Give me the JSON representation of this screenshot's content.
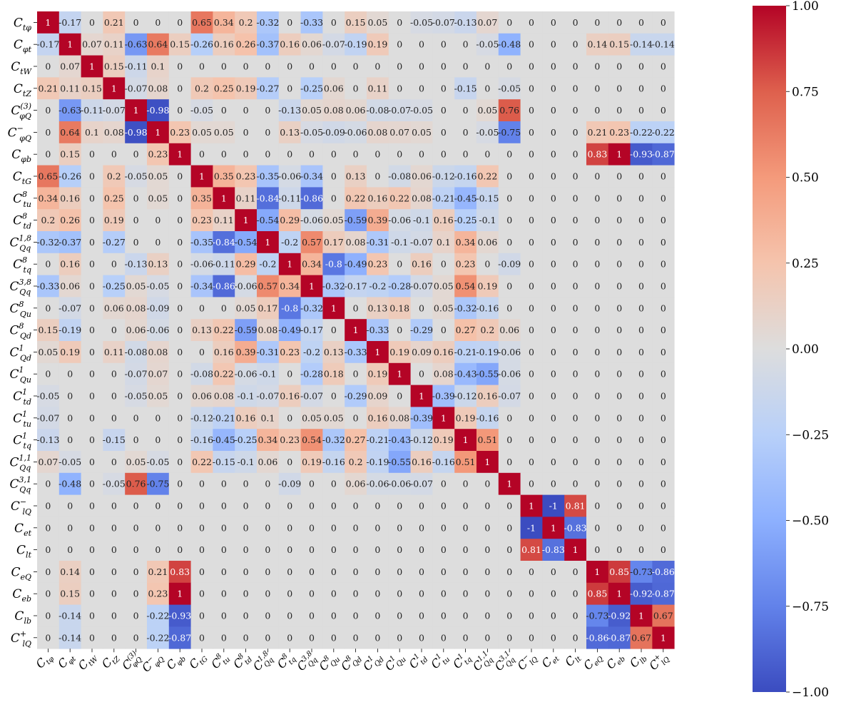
{
  "chart_data": {
    "type": "heatmap",
    "title": "",
    "xlabel": "",
    "ylabel": "",
    "labels": [
      {
        "base": "C",
        "sub": "tφ",
        "sup": ""
      },
      {
        "base": "C",
        "sub": "φt",
        "sup": ""
      },
      {
        "base": "C",
        "sub": "tW",
        "sup": ""
      },
      {
        "base": "C",
        "sub": "tZ",
        "sup": ""
      },
      {
        "base": "C",
        "sub": "φQ",
        "sup": "(3)"
      },
      {
        "base": "C",
        "sub": "φQ",
        "sup": "−"
      },
      {
        "base": "C",
        "sub": "φb",
        "sup": ""
      },
      {
        "base": "C",
        "sub": "tG",
        "sup": ""
      },
      {
        "base": "C",
        "sub": "tu",
        "sup": "8"
      },
      {
        "base": "C",
        "sub": "td",
        "sup": "8"
      },
      {
        "base": "C",
        "sub": "Qq",
        "sup": "1,8"
      },
      {
        "base": "C",
        "sub": "tq",
        "sup": "8"
      },
      {
        "base": "C",
        "sub": "Qq",
        "sup": "3,8"
      },
      {
        "base": "C",
        "sub": "Qu",
        "sup": "8"
      },
      {
        "base": "C",
        "sub": "Qd",
        "sup": "8"
      },
      {
        "base": "C",
        "sub": "Qd",
        "sup": "1"
      },
      {
        "base": "C",
        "sub": "Qu",
        "sup": "1"
      },
      {
        "base": "C",
        "sub": "td",
        "sup": "1"
      },
      {
        "base": "C",
        "sub": "tu",
        "sup": "1"
      },
      {
        "base": "C",
        "sub": "tq",
        "sup": "1"
      },
      {
        "base": "C",
        "sub": "Qq",
        "sup": "1,1"
      },
      {
        "base": "C",
        "sub": "Qq",
        "sup": "3,1"
      },
      {
        "base": "C",
        "sub": "lQ",
        "sup": "−"
      },
      {
        "base": "C",
        "sub": "et",
        "sup": ""
      },
      {
        "base": "C",
        "sub": "lt",
        "sup": ""
      },
      {
        "base": "C",
        "sub": "eQ",
        "sup": ""
      },
      {
        "base": "C",
        "sub": "eb",
        "sup": ""
      },
      {
        "base": "C",
        "sub": "lb",
        "sup": ""
      },
      {
        "base": "C",
        "sub": "lQ",
        "sup": "+"
      }
    ],
    "matrix": [
      [
        1,
        -0.17,
        0,
        0.21,
        0,
        0,
        0,
        0.65,
        0.34,
        0.2,
        -0.32,
        0,
        -0.33,
        0,
        0.15,
        0.05,
        0,
        -0.05,
        -0.07,
        -0.13,
        0.07,
        0,
        0,
        0,
        0,
        0,
        0,
        0,
        0
      ],
      [
        -0.17,
        1,
        0.07,
        0.11,
        -0.63,
        0.64,
        0.15,
        -0.26,
        0.16,
        0.26,
        -0.37,
        0.16,
        0.06,
        -0.07,
        -0.19,
        0.19,
        0,
        0,
        0,
        0,
        -0.05,
        -0.48,
        0,
        0,
        0,
        0.14,
        0.15,
        -0.14,
        -0.14
      ],
      [
        0,
        0.07,
        1,
        0.15,
        -0.11,
        0.1,
        0,
        0,
        0,
        0,
        0,
        0,
        0,
        0,
        0,
        0,
        0,
        0,
        0,
        0,
        0,
        0,
        0,
        0,
        0,
        0,
        0,
        0,
        0
      ],
      [
        0.21,
        0.11,
        0.15,
        1,
        -0.07,
        0.08,
        0,
        0.2,
        0.25,
        0.19,
        -0.27,
        0,
        -0.25,
        0.06,
        0,
        0.11,
        0,
        0,
        0,
        -0.15,
        0,
        -0.05,
        0,
        0,
        0,
        0,
        0,
        0,
        0
      ],
      [
        0,
        -0.63,
        -0.11,
        -0.07,
        1,
        -0.98,
        0,
        -0.05,
        0,
        0,
        0,
        -0.13,
        0.05,
        0.08,
        0.06,
        -0.08,
        -0.07,
        -0.05,
        0,
        0,
        0.05,
        0.76,
        0,
        0,
        0,
        0,
        0,
        0,
        0
      ],
      [
        0,
        0.64,
        0.1,
        0.08,
        -0.98,
        1,
        0.23,
        0.05,
        0.05,
        0,
        0,
        0.13,
        -0.05,
        -0.09,
        -0.06,
        0.08,
        0.07,
        0.05,
        0,
        0,
        -0.05,
        -0.75,
        0,
        0,
        0,
        0.21,
        0.23,
        -0.22,
        -0.22
      ],
      [
        0,
        0.15,
        0,
        0,
        0,
        0.23,
        1,
        0,
        0,
        0,
        0,
        0,
        0,
        0,
        0,
        0,
        0,
        0,
        0,
        0,
        0,
        0,
        0,
        0,
        0,
        0.83,
        1,
        -0.93,
        -0.87
      ],
      [
        0.65,
        -0.26,
        0,
        0.2,
        -0.05,
        0.05,
        0,
        1,
        0.35,
        0.23,
        -0.35,
        -0.06,
        -0.34,
        0,
        0.13,
        0,
        -0.08,
        0.06,
        -0.12,
        -0.16,
        0.22,
        0,
        0,
        0,
        0,
        0,
        0,
        0,
        0
      ],
      [
        0.34,
        0.16,
        0,
        0.25,
        0,
        0.05,
        0,
        0.35,
        1,
        0.11,
        -0.84,
        -0.11,
        -0.86,
        0,
        0.22,
        0.16,
        0.22,
        0.08,
        -0.21,
        -0.45,
        -0.15,
        0,
        0,
        0,
        0,
        0,
        0,
        0,
        0
      ],
      [
        0.2,
        0.26,
        0,
        0.19,
        0,
        0,
        0,
        0.23,
        0.11,
        1,
        -0.54,
        0.29,
        -0.06,
        0.05,
        -0.59,
        0.39,
        -0.06,
        -0.1,
        0.16,
        -0.25,
        -0.1,
        0,
        0,
        0,
        0,
        0,
        0,
        0,
        0
      ],
      [
        -0.32,
        -0.37,
        0,
        -0.27,
        0,
        0,
        0,
        -0.35,
        -0.84,
        -0.54,
        1,
        -0.2,
        0.57,
        0.17,
        0.08,
        -0.31,
        -0.1,
        -0.07,
        0.1,
        0.34,
        0.06,
        0,
        0,
        0,
        0,
        0,
        0,
        0,
        0
      ],
      [
        0,
        0.16,
        0,
        0,
        -0.13,
        0.13,
        0,
        -0.06,
        -0.11,
        0.29,
        -0.2,
        1,
        0.34,
        -0.8,
        -0.49,
        0.23,
        0,
        0.16,
        0,
        0.23,
        0,
        -0.09,
        0,
        0,
        0,
        0,
        0,
        0,
        0
      ],
      [
        -0.33,
        0.06,
        0,
        -0.25,
        0.05,
        -0.05,
        0,
        -0.34,
        -0.86,
        -0.06,
        0.57,
        0.34,
        1,
        -0.32,
        -0.17,
        -0.2,
        -0.28,
        -0.07,
        0.05,
        0.54,
        0.19,
        0,
        0,
        0,
        0,
        0,
        0,
        0,
        0
      ],
      [
        0,
        -0.07,
        0,
        0.06,
        0.08,
        -0.09,
        0,
        0,
        0,
        0.05,
        0.17,
        -0.8,
        -0.32,
        1,
        0,
        0.13,
        0.18,
        0,
        0.05,
        -0.32,
        -0.16,
        0,
        0,
        0,
        0,
        0,
        0,
        0,
        0
      ],
      [
        0.15,
        -0.19,
        0,
        0,
        0.06,
        -0.06,
        0,
        0.13,
        0.22,
        -0.59,
        0.08,
        -0.49,
        -0.17,
        0,
        1,
        -0.33,
        0,
        -0.29,
        0,
        0.27,
        0.2,
        0.06,
        0,
        0,
        0,
        0,
        0,
        0,
        0
      ],
      [
        0.05,
        0.19,
        0,
        0.11,
        -0.08,
        0.08,
        0,
        0,
        0.16,
        0.39,
        -0.31,
        0.23,
        -0.2,
        0.13,
        -0.33,
        1,
        0.19,
        0.09,
        0.16,
        -0.21,
        -0.19,
        -0.06,
        0,
        0,
        0,
        0,
        0,
        0,
        0
      ],
      [
        0,
        0,
        0,
        0,
        -0.07,
        0.07,
        0,
        -0.08,
        0.22,
        -0.06,
        -0.1,
        0,
        -0.28,
        0.18,
        0,
        0.19,
        1,
        0,
        0.08,
        -0.43,
        -0.55,
        -0.06,
        0,
        0,
        0,
        0,
        0,
        0,
        0
      ],
      [
        -0.05,
        0,
        0,
        0,
        -0.05,
        0.05,
        0,
        0.06,
        0.08,
        -0.1,
        -0.07,
        0.16,
        -0.07,
        0,
        -0.29,
        0.09,
        0,
        1,
        -0.39,
        -0.12,
        0.16,
        -0.07,
        0,
        0,
        0,
        0,
        0,
        0,
        0
      ],
      [
        -0.07,
        0,
        0,
        0,
        0,
        0,
        0,
        -0.12,
        -0.21,
        0.16,
        0.1,
        0,
        0.05,
        0.05,
        0,
        0.16,
        0.08,
        -0.39,
        1,
        0.19,
        -0.16,
        0,
        0,
        0,
        0,
        0,
        0,
        0,
        0
      ],
      [
        -0.13,
        0,
        0,
        -0.15,
        0,
        0,
        0,
        -0.16,
        -0.45,
        -0.25,
        0.34,
        0.23,
        0.54,
        -0.32,
        0.27,
        -0.21,
        -0.43,
        -0.12,
        0.19,
        1,
        0.51,
        0,
        0,
        0,
        0,
        0,
        0,
        0,
        0
      ],
      [
        0.07,
        -0.05,
        0,
        0,
        0.05,
        -0.05,
        0,
        0.22,
        -0.15,
        -0.1,
        0.06,
        0,
        0.19,
        -0.16,
        0.2,
        -0.19,
        -0.55,
        0.16,
        -0.16,
        0.51,
        1,
        0,
        0,
        0,
        0,
        0,
        0,
        0,
        0
      ],
      [
        0,
        -0.48,
        0,
        -0.05,
        0.76,
        -0.75,
        0,
        0,
        0,
        0,
        0,
        -0.09,
        0,
        0,
        0.06,
        -0.06,
        -0.06,
        -0.07,
        0,
        0,
        0,
        1,
        0,
        0,
        0,
        0,
        0,
        0,
        0
      ],
      [
        0,
        0,
        0,
        0,
        0,
        0,
        0,
        0,
        0,
        0,
        0,
        0,
        0,
        0,
        0,
        0,
        0,
        0,
        0,
        0,
        0,
        0,
        1,
        -1,
        0.81,
        0,
        0,
        0,
        0
      ],
      [
        0,
        0,
        0,
        0,
        0,
        0,
        0,
        0,
        0,
        0,
        0,
        0,
        0,
        0,
        0,
        0,
        0,
        0,
        0,
        0,
        0,
        0,
        -1,
        1,
        -0.83,
        0,
        0,
        0,
        0
      ],
      [
        0,
        0,
        0,
        0,
        0,
        0,
        0,
        0,
        0,
        0,
        0,
        0,
        0,
        0,
        0,
        0,
        0,
        0,
        0,
        0,
        0,
        0,
        0.81,
        -0.83,
        1,
        0,
        0,
        0,
        0
      ],
      [
        0,
        0.14,
        0,
        0,
        0,
        0.21,
        0.83,
        0,
        0,
        0,
        0,
        0,
        0,
        0,
        0,
        0,
        0,
        0,
        0,
        0,
        0,
        0,
        0,
        0,
        0,
        1,
        0.85,
        -0.73,
        -0.86
      ],
      [
        0,
        0.15,
        0,
        0,
        0,
        0.23,
        1,
        0,
        0,
        0,
        0,
        0,
        0,
        0,
        0,
        0,
        0,
        0,
        0,
        0,
        0,
        0,
        0,
        0,
        0,
        0.85,
        1,
        -0.92,
        -0.87
      ],
      [
        0,
        -0.14,
        0,
        0,
        0,
        -0.22,
        -0.93,
        0,
        0,
        0,
        0,
        0,
        0,
        0,
        0,
        0,
        0,
        0,
        0,
        0,
        0,
        0,
        0,
        0,
        0,
        -0.73,
        -0.92,
        1,
        0.67
      ],
      [
        0,
        -0.14,
        0,
        0,
        0,
        -0.22,
        -0.87,
        0,
        0,
        0,
        0,
        0,
        0,
        0,
        0,
        0,
        0,
        0,
        0,
        0,
        0,
        0,
        0,
        0,
        0,
        -0.86,
        -0.87,
        0.67,
        1
      ]
    ],
    "vmin": -1,
    "vmax": 1,
    "colormap": "coolwarm",
    "colorbar_ticks": [
      1,
      0.75,
      0.5,
      0.25,
      0,
      -0.25,
      -0.5,
      -0.75,
      -1
    ],
    "colorbar_tick_labels": [
      "1.00",
      "0.75",
      "0.50",
      "0.25",
      "0.00",
      "−0.25",
      "−0.50",
      "−0.75",
      "−1.00"
    ],
    "annotations": true
  }
}
